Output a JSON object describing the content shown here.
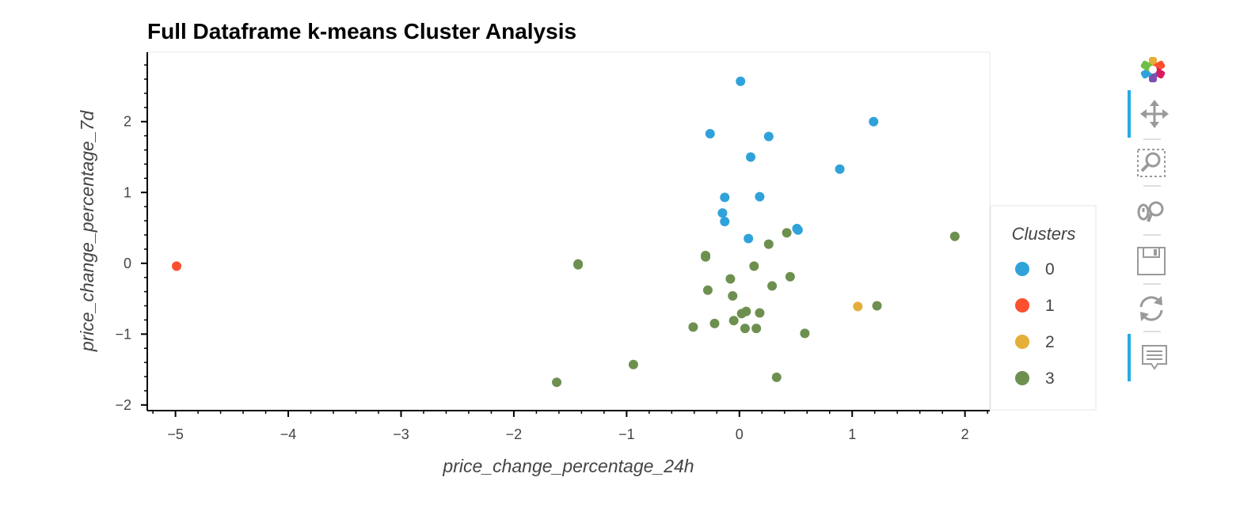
{
  "chart_data": {
    "type": "scatter",
    "title": "Full Dataframe k-means Cluster Analysis",
    "xlabel": "price_change_percentage_24h",
    "ylabel": "price_change_percentage_7d",
    "xlim": [
      -5.25,
      2.22
    ],
    "ylim": [
      -2.08,
      2.98
    ],
    "xticks": [
      -5,
      -4,
      -3,
      -2,
      -1,
      0,
      1,
      2
    ],
    "yticks": [
      -2,
      -1,
      0,
      1,
      2
    ],
    "xtick_labels": [
      "−5",
      "−4",
      "−3",
      "−2",
      "−1",
      "0",
      "1",
      "2"
    ],
    "ytick_labels": [
      "−2",
      "−1",
      "0",
      "1",
      "2"
    ],
    "legend": {
      "title": "Clusters",
      "position": "right"
    },
    "series": [
      {
        "name": "0",
        "color": "#30a2da",
        "points": [
          [
            0.01,
            2.57
          ],
          [
            -0.26,
            1.83
          ],
          [
            0.26,
            1.79
          ],
          [
            1.19,
            2.0
          ],
          [
            0.1,
            1.5
          ],
          [
            0.89,
            1.33
          ],
          [
            -0.13,
            0.93
          ],
          [
            0.18,
            0.94
          ],
          [
            -0.15,
            0.71
          ],
          [
            -0.13,
            0.59
          ],
          [
            0.51,
            0.49
          ],
          [
            0.52,
            0.47
          ],
          [
            0.08,
            0.35
          ]
        ]
      },
      {
        "name": "1",
        "color": "#fc4f30",
        "points": [
          [
            -4.99,
            -0.04
          ]
        ]
      },
      {
        "name": "2",
        "color": "#e5ae38",
        "points": [
          [
            1.05,
            -0.61
          ]
        ]
      },
      {
        "name": "3",
        "color": "#6d904f",
        "points": [
          [
            -1.43,
            -0.01
          ],
          [
            -1.43,
            -0.02
          ],
          [
            -0.3,
            0.11
          ],
          [
            -0.3,
            0.09
          ],
          [
            0.42,
            0.43
          ],
          [
            0.26,
            0.27
          ],
          [
            0.13,
            -0.04
          ],
          [
            0.45,
            -0.19
          ],
          [
            -0.08,
            -0.22
          ],
          [
            0.29,
            -0.32
          ],
          [
            -0.28,
            -0.38
          ],
          [
            -0.06,
            -0.46
          ],
          [
            1.22,
            -0.6
          ],
          [
            1.91,
            0.38
          ],
          [
            0.02,
            -0.71
          ],
          [
            0.06,
            -0.68
          ],
          [
            0.18,
            -0.7
          ],
          [
            -0.05,
            -0.81
          ],
          [
            -0.22,
            -0.85
          ],
          [
            -0.41,
            -0.9
          ],
          [
            0.05,
            -0.92
          ],
          [
            0.15,
            -0.92
          ],
          [
            0.58,
            -0.99
          ],
          [
            -0.94,
            -1.43
          ],
          [
            -1.62,
            -1.68
          ],
          [
            0.33,
            -1.61
          ]
        ]
      }
    ]
  },
  "toolbar": {
    "items": [
      {
        "icon": "bokeh-logo-icon"
      },
      {
        "icon": "pan-icon",
        "active": true
      },
      {
        "icon": "box-zoom-icon"
      },
      {
        "icon": "wheel-zoom-icon"
      },
      {
        "icon": "save-icon"
      },
      {
        "icon": "reset-icon"
      },
      {
        "icon": "hover-icon",
        "active": true
      }
    ]
  }
}
